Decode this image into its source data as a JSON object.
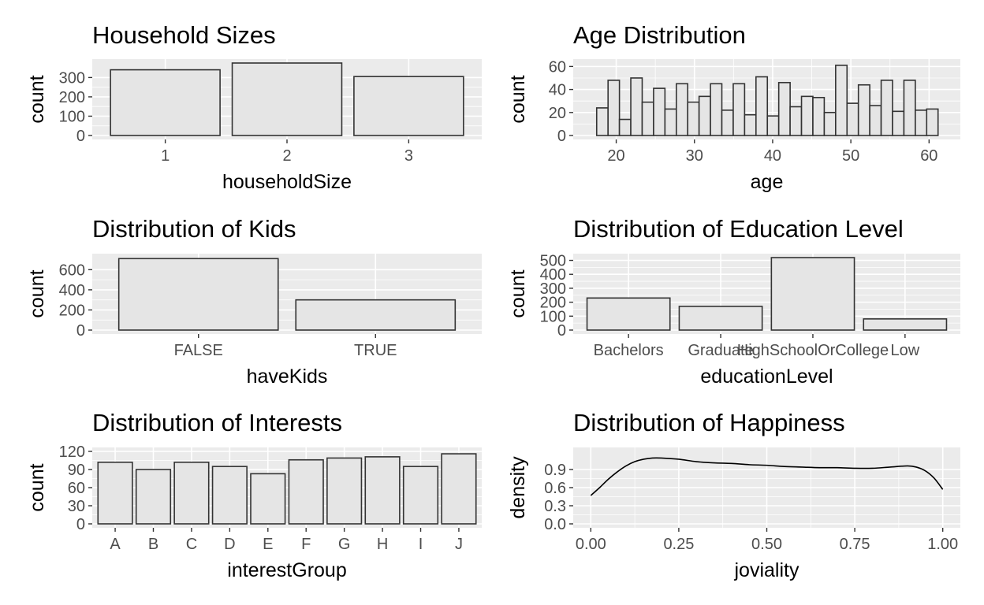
{
  "chart_data": [
    {
      "type": "bar",
      "title": "Household Sizes",
      "xlabel": "householdSize",
      "ylabel": "count",
      "categories": [
        "1",
        "2",
        "3"
      ],
      "values": [
        340,
        375,
        305
      ],
      "ylim": [
        0,
        375
      ],
      "yticks": [
        0,
        100,
        200,
        300
      ],
      "ytick_labels": [
        "0",
        "100",
        "200",
        "300"
      ],
      "grid": true
    },
    {
      "type": "bar",
      "title": "Age Distribution",
      "xlabel": "age",
      "ylabel": "count",
      "bin_start": 17.5,
      "bin_width": 1.455,
      "values": [
        24,
        48,
        14,
        50,
        29,
        41,
        23,
        45,
        29,
        34,
        45,
        22,
        45,
        18,
        51,
        17,
        46,
        25,
        34,
        33,
        20,
        61,
        28,
        44,
        26,
        48,
        21,
        48,
        22,
        23
      ],
      "xlim": [
        14.5,
        64
      ],
      "xticks": [
        20,
        30,
        40,
        50,
        60
      ],
      "xtick_labels": [
        "20",
        "30",
        "40",
        "50",
        "60"
      ],
      "ylim": [
        0,
        63
      ],
      "yticks": [
        0,
        20,
        40,
        60
      ],
      "ytick_labels": [
        "0",
        "20",
        "40",
        "60"
      ],
      "grid": true
    },
    {
      "type": "bar",
      "title": "Distribution of Kids",
      "xlabel": "haveKids",
      "ylabel": "count",
      "categories": [
        "FALSE",
        "TRUE"
      ],
      "values": [
        710,
        300
      ],
      "ylim": [
        0,
        720
      ],
      "yticks": [
        0,
        200,
        400,
        600
      ],
      "ytick_labels": [
        "0",
        "200",
        "400",
        "600"
      ],
      "grid": true
    },
    {
      "type": "bar",
      "title": "Distribution of Education Level",
      "xlabel": "educationLevel",
      "ylabel": "count",
      "categories": [
        "Bachelors",
        "Graduate",
        "HighSchoolOrCollege",
        "Low"
      ],
      "values": [
        230,
        170,
        520,
        80
      ],
      "ylim": [
        0,
        520
      ],
      "yticks": [
        0,
        100,
        200,
        300,
        400,
        500
      ],
      "ytick_labels": [
        "0",
        "100",
        "200",
        "300",
        "400",
        "500"
      ],
      "grid": true
    },
    {
      "type": "bar",
      "title": "Distribution of Interests",
      "xlabel": "interestGroup",
      "ylabel": "count",
      "categories": [
        "A",
        "B",
        "C",
        "D",
        "E",
        "F",
        "G",
        "H",
        "I",
        "J"
      ],
      "values": [
        102,
        90,
        102,
        95,
        83,
        106,
        109,
        111,
        95,
        116
      ],
      "ylim": [
        0,
        120
      ],
      "yticks": [
        0,
        30,
        60,
        90,
        120
      ],
      "ytick_labels": [
        "0",
        "30",
        "60",
        "90",
        "120"
      ],
      "grid": true
    },
    {
      "type": "line",
      "title": "Distribution of Happiness",
      "xlabel": "joviality",
      "ylabel": "density",
      "x": [
        0.0,
        0.025,
        0.05,
        0.075,
        0.1,
        0.125,
        0.15,
        0.175,
        0.2,
        0.25,
        0.3,
        0.35,
        0.4,
        0.45,
        0.5,
        0.55,
        0.6,
        0.65,
        0.7,
        0.75,
        0.8,
        0.85,
        0.9,
        0.925,
        0.95,
        0.975,
        1.0
      ],
      "y": [
        0.47,
        0.6,
        0.74,
        0.86,
        0.96,
        1.03,
        1.07,
        1.09,
        1.09,
        1.07,
        1.03,
        1.01,
        1.0,
        0.98,
        0.97,
        0.95,
        0.94,
        0.93,
        0.93,
        0.92,
        0.92,
        0.94,
        0.96,
        0.94,
        0.88,
        0.76,
        0.57
      ],
      "xlim": [
        -0.05,
        1.05
      ],
      "xticks": [
        0,
        0.25,
        0.5,
        0.75,
        1
      ],
      "xtick_labels": [
        "0.00",
        "0.25",
        "0.50",
        "0.75",
        "1.00"
      ],
      "ylim": [
        0,
        1.2
      ],
      "yticks": [
        0,
        0.3,
        0.6,
        0.9
      ],
      "ytick_labels": [
        "0.0",
        "0.3",
        "0.6",
        "0.9"
      ],
      "grid": true
    }
  ],
  "colors": {
    "panel_background": "#ebebeb",
    "grid_major": "#ffffff",
    "bar_fill": "#e5e5e5",
    "bar_outline": "#333333",
    "line": "#000000",
    "tick_text": "#4d4d4d",
    "tick_mark": "#333333"
  }
}
